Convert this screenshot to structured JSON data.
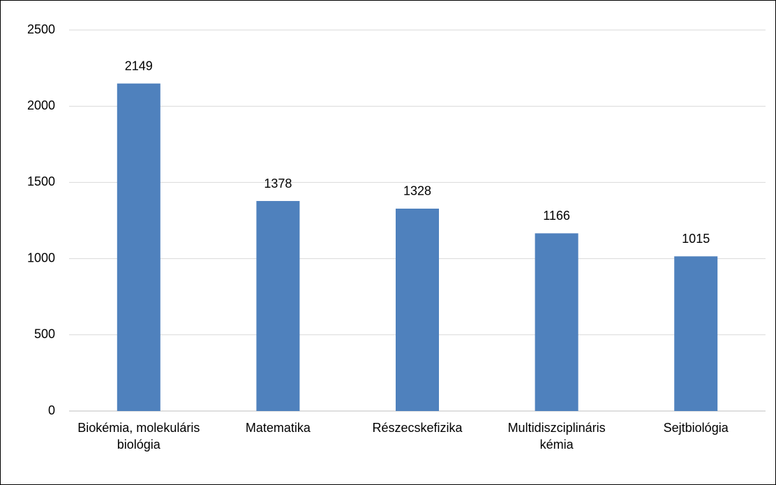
{
  "chart_data": {
    "type": "bar",
    "categories": [
      "Biokémia, molekuláris biológia",
      "Matematika",
      "Részecskefizika",
      "Multidiszciplináris kémia",
      "Sejtbiológia"
    ],
    "values": [
      2149,
      1378,
      1328,
      1166,
      1015
    ],
    "color": "#4f81bd",
    "ylim": [
      0,
      2500
    ],
    "yticks": [
      0,
      500,
      1000,
      1500,
      2000,
      2500
    ],
    "grid": true
  }
}
